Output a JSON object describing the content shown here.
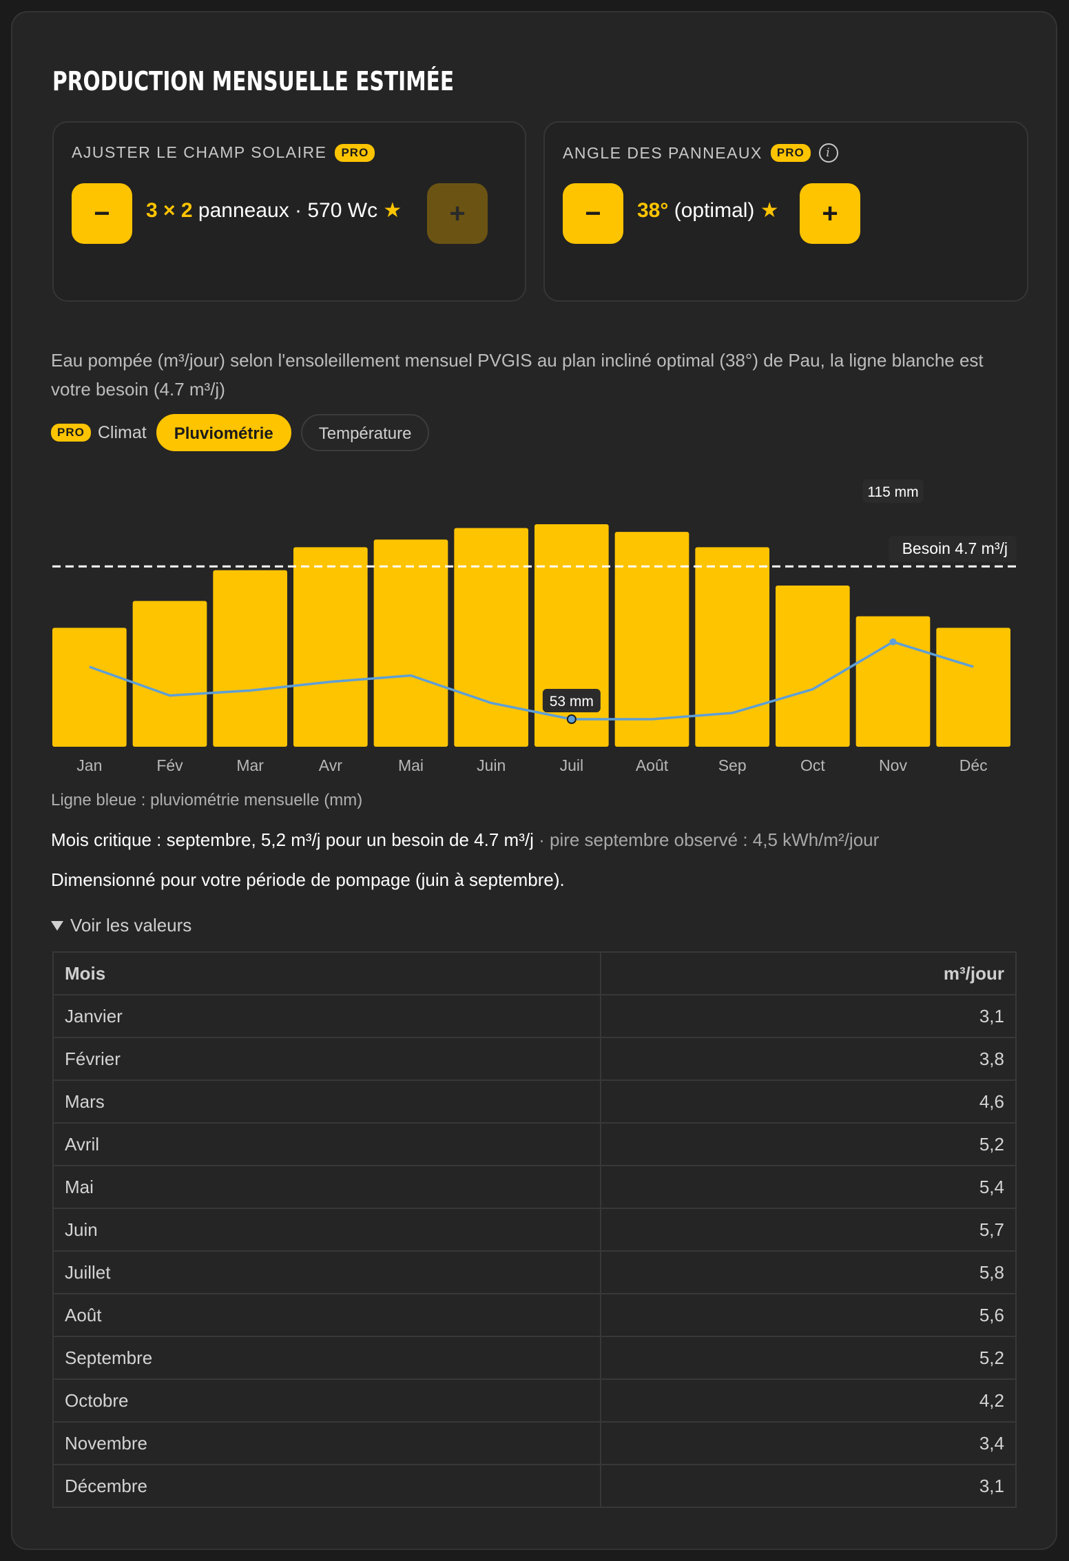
{
  "title": "PRODUCTION MENSUELLE ESTIMÉE",
  "field_panel": {
    "label": "AJUSTER LE CHAMP SOLAIRE",
    "pro": "PRO",
    "minus": "−",
    "plus": "+",
    "count": "3 × 2",
    "text": "panneaux · 570 Wc",
    "star": "★"
  },
  "angle_panel": {
    "label": "ANGLE DES PANNEAUX",
    "pro": "PRO",
    "info": "i",
    "minus": "−",
    "plus": "+",
    "angle": "38°",
    "text": "(optimal)",
    "star": "★"
  },
  "description": "Eau pompée (m³/jour) selon l'ensoleillement mensuel PVGIS au plan incliné optimal (38°) de Pau, la ligne blanche est votre besoin (4.7 m³/j)",
  "tabs": {
    "pro": "PRO",
    "label": "Climat",
    "items": [
      "Pluviométrie",
      "Température"
    ],
    "active": "Pluviométrie"
  },
  "chart_data": {
    "type": "bar",
    "categories": [
      "Jan",
      "Fév",
      "Mar",
      "Avr",
      "Mai",
      "Juin",
      "Juil",
      "Août",
      "Sep",
      "Oct",
      "Nov",
      "Déc"
    ],
    "series": [
      {
        "values": [
          3.1,
          3.8,
          4.6,
          5.2,
          5.4,
          5.7,
          5.8,
          5.6,
          5.2,
          4.2,
          3.4,
          3.1
        ],
        "color": "#ffc400"
      },
      {
        "type": "line",
        "values": [
          95,
          72,
          76,
          83,
          88,
          66,
          53,
          53,
          58,
          77,
          115,
          95
        ],
        "color": "#5f9fd6"
      }
    ],
    "reference": {
      "value": 4.7,
      "label": "Besoin 4.7 m³/j"
    },
    "annotations": [
      {
        "month": "Juil",
        "label": "53 mm"
      },
      {
        "month": "Nov",
        "label": "115 mm"
      }
    ],
    "grid": false
  },
  "legend_note": "Ligne bleue : pluviométrie mensuelle (mm)",
  "critical": {
    "main": "Mois critique : septembre, 5,2 m³/j pour un besoin de 4.7 m³/j",
    "muted": " · pire septembre observé : 4,5 kWh/m²/jour"
  },
  "sizing": "Dimensionné pour votre période de pompage (juin à septembre).",
  "details_label": "Voir les valeurs",
  "table": {
    "headers": [
      "Mois",
      "m³/jour"
    ],
    "rows": [
      [
        "Janvier",
        "3,1"
      ],
      [
        "Février",
        "3,8"
      ],
      [
        "Mars",
        "4,6"
      ],
      [
        "Avril",
        "5,2"
      ],
      [
        "Mai",
        "5,4"
      ],
      [
        "Juin",
        "5,7"
      ],
      [
        "Juillet",
        "5,8"
      ],
      [
        "Août",
        "5,6"
      ],
      [
        "Septembre",
        "5,2"
      ],
      [
        "Octobre",
        "4,2"
      ],
      [
        "Novembre",
        "3,4"
      ],
      [
        "Décembre",
        "3,1"
      ]
    ]
  },
  "colors": {
    "accent": "#ffc400",
    "rain_line": "#5f9fd6",
    "background": "#252525"
  }
}
